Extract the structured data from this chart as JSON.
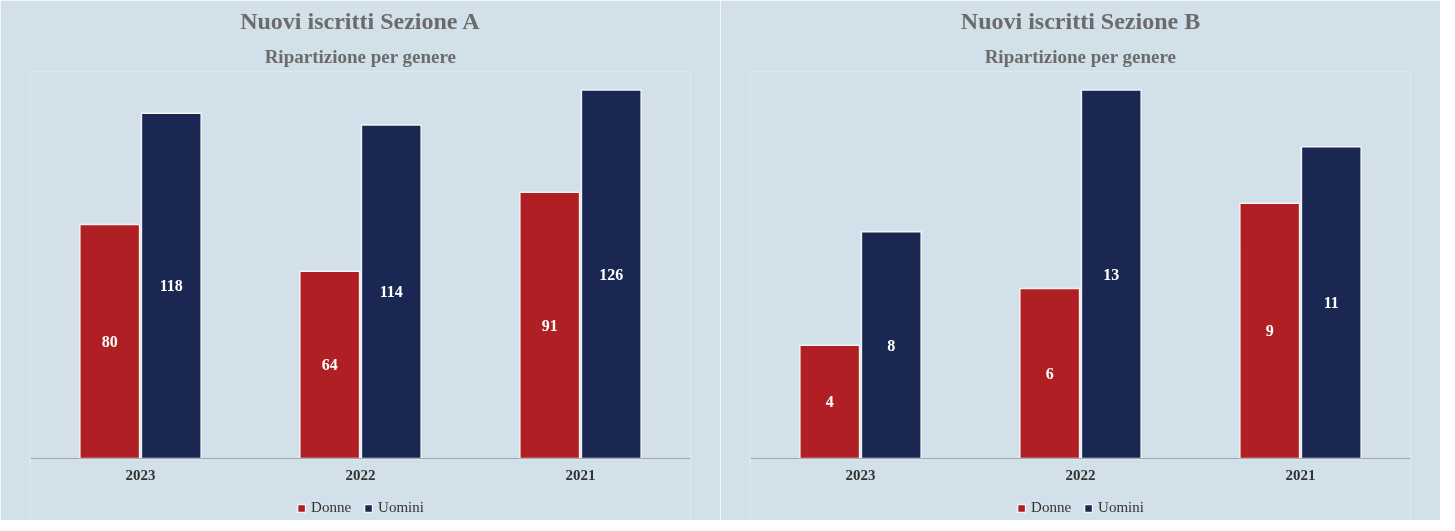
{
  "chart_data": [
    {
      "type": "bar",
      "title": "Nuovi iscritti Sezione A",
      "subtitle": "Ripartizione per genere",
      "categories": [
        "2023",
        "2022",
        "2021"
      ],
      "series": [
        {
          "name": "Donne",
          "color": "#b01f24",
          "values": [
            80,
            64,
            91
          ]
        },
        {
          "name": "Uomini",
          "color": "#1a2752",
          "values": [
            118,
            114,
            126
          ]
        }
      ],
      "data_labels": true,
      "tick_labels": "x",
      "grid": false,
      "legend": "bottom"
    },
    {
      "type": "bar",
      "title": "Nuovi iscritti Sezione B",
      "subtitle": "Ripartizione per genere",
      "categories": [
        "2023",
        "2022",
        "2021"
      ],
      "series": [
        {
          "name": "Donne",
          "color": "#b01f24",
          "values": [
            4,
            6,
            9
          ]
        },
        {
          "name": "Uomini",
          "color": "#1a2752",
          "values": [
            8,
            13,
            11
          ]
        }
      ],
      "data_labels": true,
      "tick_labels": "x",
      "grid": false,
      "legend": "bottom"
    }
  ]
}
